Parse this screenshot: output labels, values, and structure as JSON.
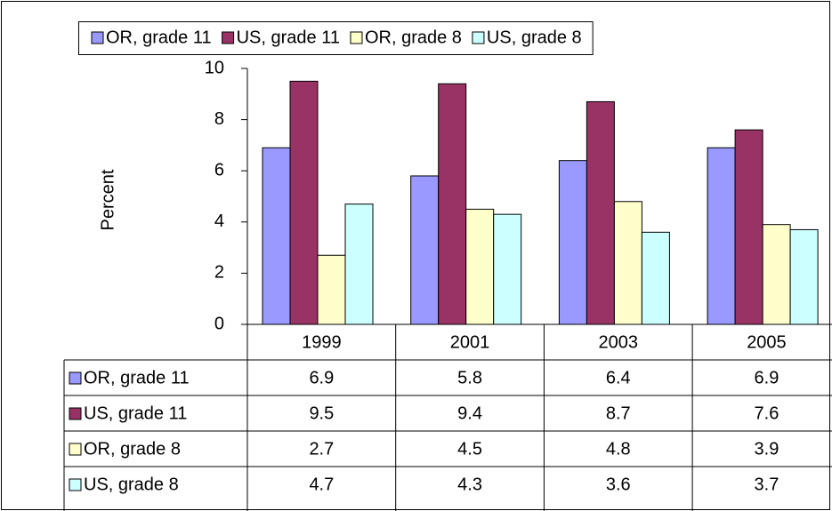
{
  "chart_data": {
    "type": "bar",
    "y_label": "Percent",
    "categories": [
      "1999",
      "2001",
      "2003",
      "2005"
    ],
    "series": [
      {
        "name": "OR, grade 11",
        "color": "#9999ff",
        "values": [
          6.9,
          5.8,
          6.4,
          6.9
        ]
      },
      {
        "name": "US, grade 11",
        "color": "#993366",
        "values": [
          9.5,
          9.4,
          8.7,
          7.6
        ]
      },
      {
        "name": "OR, grade 8",
        "color": "#ffffcc",
        "values": [
          2.7,
          4.5,
          4.8,
          3.9
        ]
      },
      {
        "name": "US, grade 8",
        "color": "#ccffff",
        "values": [
          4.7,
          4.3,
          3.6,
          3.7
        ]
      }
    ],
    "ylim": [
      0,
      10
    ],
    "yticks": [
      0,
      2,
      4,
      6,
      8,
      10
    ],
    "legend": "top",
    "data_table": true
  }
}
